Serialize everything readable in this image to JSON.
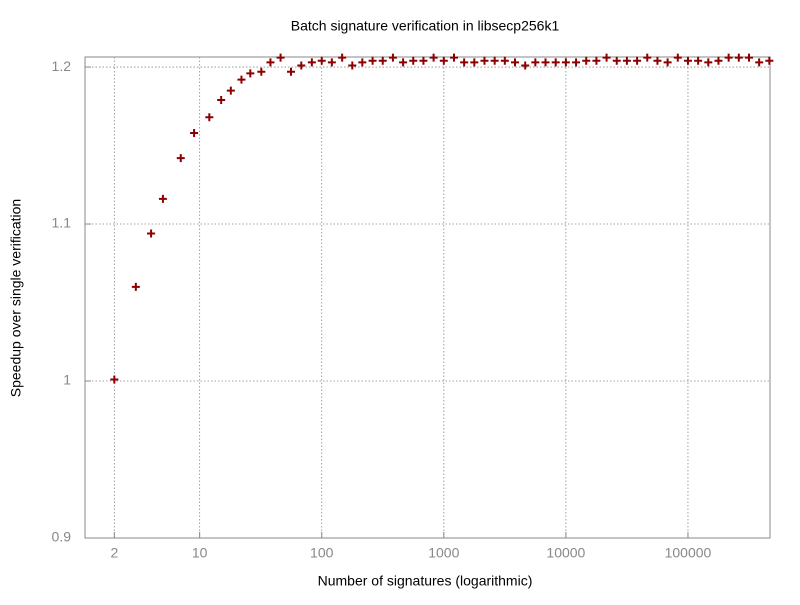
{
  "chart_data": {
    "type": "scatter",
    "title": "Batch signature verification in libsecp256k1",
    "x_label": "Number of signatures (logarithmic)",
    "y_label": "Speedup over single verification",
    "x_log": true,
    "grid": true,
    "color": "#8b0000",
    "xlim": [
      1.15,
      470000
    ],
    "ylim": [
      0.9,
      1.2064
    ],
    "xticks": [
      2,
      10,
      100,
      1000,
      10000,
      100000
    ],
    "yticks": [
      0.9,
      1,
      1.1,
      1.2
    ],
    "x": [
      2,
      3,
      4,
      5,
      7,
      9,
      12,
      15,
      18,
      22,
      26,
      32,
      38,
      46,
      56,
      68,
      83,
      100,
      121,
      147,
      178,
      215,
      261,
      316,
      383,
      464,
      562,
      681,
      825,
      1000,
      1212,
      1468,
      1778,
      2154,
      2610,
      3162,
      3831,
      4642,
      5623,
      6813,
      8254,
      10000,
      12115,
      14678,
      17783,
      21544,
      26102,
      31623,
      38312,
      46416,
      56234,
      68129,
      82540,
      100000,
      121153,
      146780,
      177828,
      215443,
      261016,
      316228,
      383119,
      464159
    ],
    "values": [
      1.001,
      1.06,
      1.094,
      1.116,
      1.142,
      1.158,
      1.168,
      1.179,
      1.185,
      1.192,
      1.196,
      1.197,
      1.203,
      1.206,
      1.197,
      1.201,
      1.203,
      1.204,
      1.203,
      1.206,
      1.201,
      1.203,
      1.204,
      1.204,
      1.206,
      1.203,
      1.204,
      1.204,
      1.206,
      1.204,
      1.206,
      1.203,
      1.203,
      1.204,
      1.204,
      1.204,
      1.203,
      1.201,
      1.203,
      1.203,
      1.203,
      1.203,
      1.203,
      1.204,
      1.204,
      1.206,
      1.204,
      1.204,
      1.204,
      1.206,
      1.204,
      1.203,
      1.206,
      1.204,
      1.204,
      1.203,
      1.204,
      1.206,
      1.206,
      1.206,
      1.203,
      1.204
    ]
  }
}
